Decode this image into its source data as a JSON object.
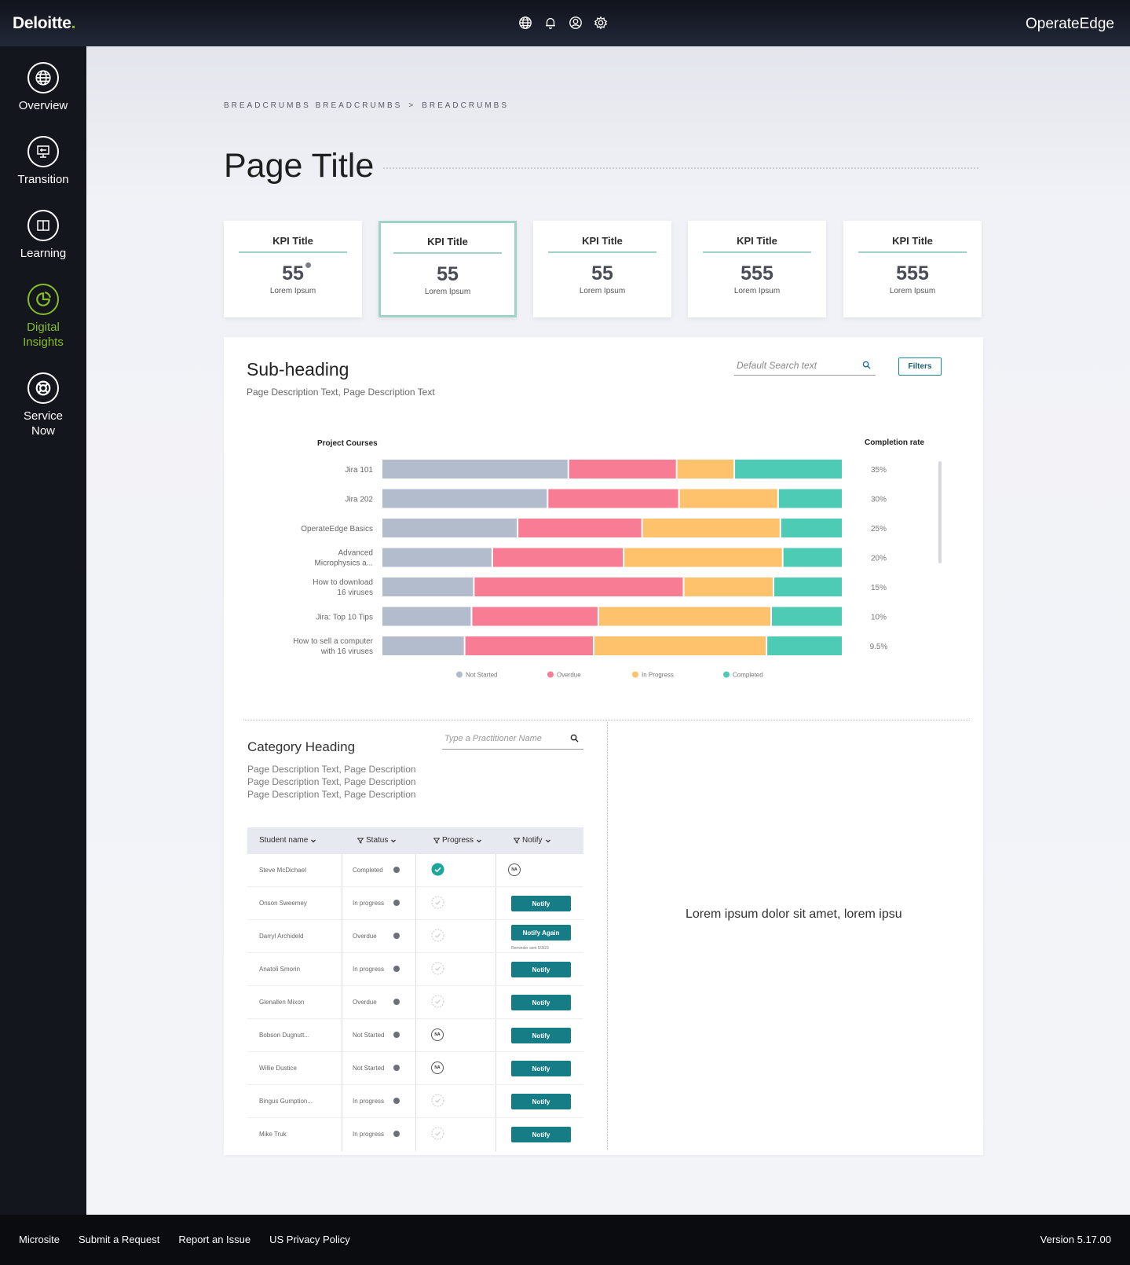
{
  "header": {
    "logo": "Deloitte",
    "logo_dot": ".",
    "product": "OperateEdge",
    "icons": [
      "globe-icon",
      "bell-icon",
      "user-icon",
      "gear-icon"
    ]
  },
  "sidebar": {
    "items": [
      {
        "label1": "Overview",
        "label2": "",
        "icon": "globe-icon",
        "active": false
      },
      {
        "label1": "Transition",
        "label2": "",
        "icon": "monitor-icon",
        "active": false
      },
      {
        "label1": "Learning",
        "label2": "",
        "icon": "book-icon",
        "active": false
      },
      {
        "label1": "Digital",
        "label2": "Insights",
        "icon": "pie-chart-icon",
        "active": true
      },
      {
        "label1": "Service",
        "label2": "Now",
        "icon": "lifebuoy-icon",
        "active": false
      }
    ]
  },
  "breadcrumb": {
    "item1": "BREADCRUMBS BREADCRUMBS",
    "sep": ">",
    "item2": "BREADCRUMBS"
  },
  "page": {
    "title": "Page Title"
  },
  "kpis": [
    {
      "title": "KPI Title",
      "value": "55",
      "label": "Lorem Ipsum"
    },
    {
      "title": "KPI Title",
      "value": "55",
      "label": "Lorem Ipsum"
    },
    {
      "title": "KPI Title",
      "value": "55",
      "label": "Lorem Ipsum"
    },
    {
      "title": "KPI Title",
      "value": "555",
      "label": "Lorem Ipsum"
    },
    {
      "title": "KPI Title",
      "value": "555",
      "label": "Lorem Ipsum"
    }
  ],
  "section": {
    "heading": "Sub-heading",
    "description": "Page Description Text, Page Description Text",
    "search_placeholder": "Default Search text",
    "filters_label": "Filters"
  },
  "chart_data": {
    "type": "bar",
    "orientation": "horizontal-stacked",
    "left_header": "Project Courses",
    "right_header": "Completion rate",
    "categories": [
      [
        "Jira 101"
      ],
      [
        "Jira 202"
      ],
      [
        "OperateEdge Basics"
      ],
      [
        "Advanced",
        "Microphysics a..."
      ],
      [
        "How to download",
        "16 viruses"
      ],
      [
        "Jira: Top 10 Tips"
      ],
      [
        "How to sell a computer",
        "with 16 viruses"
      ]
    ],
    "series": [
      {
        "name": "Not Started",
        "color": "#b3bccd",
        "values": [
          40.5,
          36,
          29.5,
          24,
          20,
          19.5,
          18
        ]
      },
      {
        "name": "Overdue",
        "color": "#f87d94",
        "values": [
          23.5,
          28.5,
          27,
          28.5,
          45.5,
          27.5,
          28
        ]
      },
      {
        "name": "In Progress",
        "color": "#fdc26b",
        "values": [
          12.5,
          21.5,
          30,
          34.5,
          19.5,
          37.5,
          37.5
        ]
      },
      {
        "name": "Completed",
        "color": "#4ecbb4",
        "values": [
          23.5,
          14,
          13.5,
          13,
          15,
          15.5,
          16.5
        ]
      }
    ],
    "rates": [
      "35%",
      "30%",
      "25%",
      "20%",
      "15%",
      "10%",
      "9.5%"
    ],
    "legend_position": "bottom"
  },
  "category": {
    "heading": "Category Heading",
    "desc_lines": [
      "Page Description Text, Page Description",
      "Page Description Text, Page Description",
      "Page Description Text, Page Description"
    ],
    "search_placeholder": "Type a Practitioner Name",
    "right_text": "Lorem ipsum dolor sit amet, lorem ipsu"
  },
  "table": {
    "headers": {
      "name": "Student name",
      "status": "Status",
      "progress": "Progress",
      "notify": "Notify"
    },
    "rows": [
      {
        "name": "Steve McDichael",
        "status": "Completed",
        "progress": "complete",
        "notify": "na",
        "button": ""
      },
      {
        "name": "Onson Sweemey",
        "status": "In progress",
        "progress": "pending",
        "notify": "button",
        "button": "Notify"
      },
      {
        "name": "Darryl Archideld",
        "status": "Overdue",
        "progress": "pending",
        "notify": "button",
        "button": "Notify Again",
        "reminder": "Reminder sent 5/3/23"
      },
      {
        "name": "Anatoli Smorin",
        "status": "In progress",
        "progress": "pending",
        "notify": "button",
        "button": "Notify"
      },
      {
        "name": "Glenallen Mixon",
        "status": "Overdue",
        "progress": "pending",
        "notify": "button",
        "button": "Notify"
      },
      {
        "name": "Bobson Dugnutt...",
        "status": "Not Started",
        "progress": "na",
        "notify": "button",
        "button": "Notify"
      },
      {
        "name": "Willie Dustice",
        "status": "Not Started",
        "progress": "na",
        "notify": "button",
        "button": "Notify"
      },
      {
        "name": "Bingus Gumption...",
        "status": "In progress",
        "progress": "pending",
        "notify": "button",
        "button": "Notify"
      },
      {
        "name": "Mike Truk",
        "status": "In progress",
        "progress": "pending",
        "notify": "button",
        "button": "Notify"
      }
    ],
    "na_label": "NA"
  },
  "footer": {
    "links": [
      "Microsite",
      "Submit a Request",
      "Report an Issue",
      "US Privacy Policy"
    ],
    "version": "Version 5.17.00"
  },
  "colors": {
    "accent_green": "#86bc25",
    "teal": "#167d86",
    "kpi_line": "#9fd3c7"
  }
}
